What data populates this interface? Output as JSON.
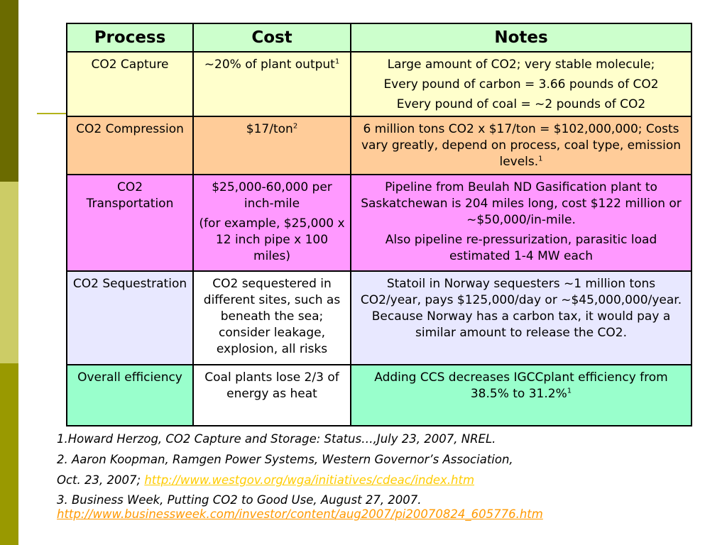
{
  "table": {
    "headers": [
      "Process",
      "Cost",
      "Notes"
    ],
    "rows": [
      {
        "process": "CO2 Capture",
        "cost": [
          "~20% of plant output"
        ],
        "cost_sup": "1",
        "notes": [
          "Large amount of CO2; very stable molecule;",
          "Every pound of carbon = 3.66 pounds of CO2",
          "Every pound of coal = ~2 pounds of CO2"
        ]
      },
      {
        "process": "CO2 Compression",
        "cost": [
          "$17/ton"
        ],
        "cost_sup": "2",
        "notes": [
          "6 million tons CO2 x $17/ton = $102,000,000; Costs vary greatly, depend on process, coal type, emission levels."
        ],
        "notes_sup": "1"
      },
      {
        "process": "CO2 Transportation",
        "cost": [
          "$25,000-60,000 per inch-mile",
          "(for example, $25,000 x 12 inch pipe x 100 miles)"
        ],
        "notes": [
          "Pipeline from Beulah ND Gasification plant to Saskatchewan is 204 miles long, cost $122 million or ~$50,000/in-mile.",
          "Also pipeline re-pressurization, parasitic load estimated 1-4 MW each"
        ]
      },
      {
        "process": "CO2 Sequestration",
        "cost": [
          "CO2 sequestered in different sites, such as beneath the sea; consider leakage, explosion, all risks"
        ],
        "notes": [
          "Statoil in Norway sequesters ~1 million tons CO2/year, pays $125,000/day or ~$45,000,000/year. Because Norway has a carbon tax, it would pay a similar amount to release the CO2."
        ]
      },
      {
        "process": "Overall efficiency",
        "cost": [
          "Coal plants lose 2/3 of energy as heat"
        ],
        "notes": [
          "Adding CCS decreases IGCCplant efficiency from 38.5% to 31.2%"
        ],
        "notes_sup": "1"
      }
    ]
  },
  "references": {
    "ref1": "1.Howard Herzog, CO2 Capture and Storage: Status…,July 23, 2007, NREL.",
    "ref2": "2. Aaron Koopman, Ramgen Power Systems, Western Governor’s Association,",
    "ref2_cont": "Oct. 23, 2007; ",
    "ref2_link": "http://www.westgov.org/wga/initiatives/cdeac/index.htm",
    "ref3": "3.  Business Week, Putting CO2 to Good Use, August 27, 2007.",
    "ref3_link": "http://www.businessweek.com/investor/content/aug2007/pi20070824_605776.htm"
  },
  "colors": {
    "header": "#ccffcc",
    "row_capture": "#ffffcc",
    "row_compression": "#ffcc99",
    "row_transportation": "#ff99ff",
    "row_sequestration": "#e8e8ff",
    "row_efficiency": "#99ffcc",
    "link": "#ffcc00"
  }
}
